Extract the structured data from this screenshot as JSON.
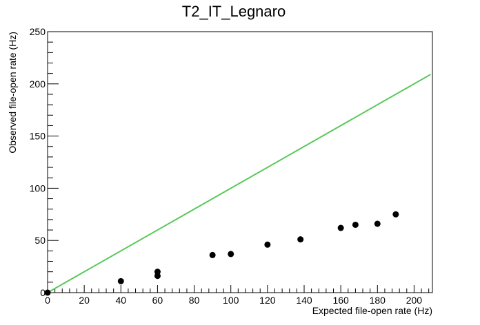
{
  "chart_data": {
    "type": "scatter",
    "title": "T2_IT_Legnaro",
    "xlabel": "Expected file-open rate (Hz)",
    "ylabel": "Observed file-open rate (Hz)",
    "xlim": [
      0,
      210
    ],
    "ylim": [
      0,
      250
    ],
    "x_ticks": [
      "0",
      "20",
      "40",
      "60",
      "80",
      "100",
      "120",
      "140",
      "160",
      "180",
      "200"
    ],
    "y_ticks": [
      "0",
      "50",
      "100",
      "150",
      "200",
      "250"
    ],
    "points": [
      {
        "x": 0,
        "y": 0
      },
      {
        "x": 40,
        "y": 11
      },
      {
        "x": 60,
        "y": 16
      },
      {
        "x": 60,
        "y": 20
      },
      {
        "x": 90,
        "y": 36
      },
      {
        "x": 100,
        "y": 37
      },
      {
        "x": 120,
        "y": 46
      },
      {
        "x": 138,
        "y": 51
      },
      {
        "x": 160,
        "y": 62
      },
      {
        "x": 168,
        "y": 65
      },
      {
        "x": 180,
        "y": 66
      },
      {
        "x": 190,
        "y": 75
      }
    ],
    "reference_line": {
      "x": [
        0,
        209
      ],
      "y": [
        0,
        209
      ],
      "color": "#5ac85a"
    },
    "marker_color": "#000000",
    "grid": false,
    "legend": "none"
  }
}
